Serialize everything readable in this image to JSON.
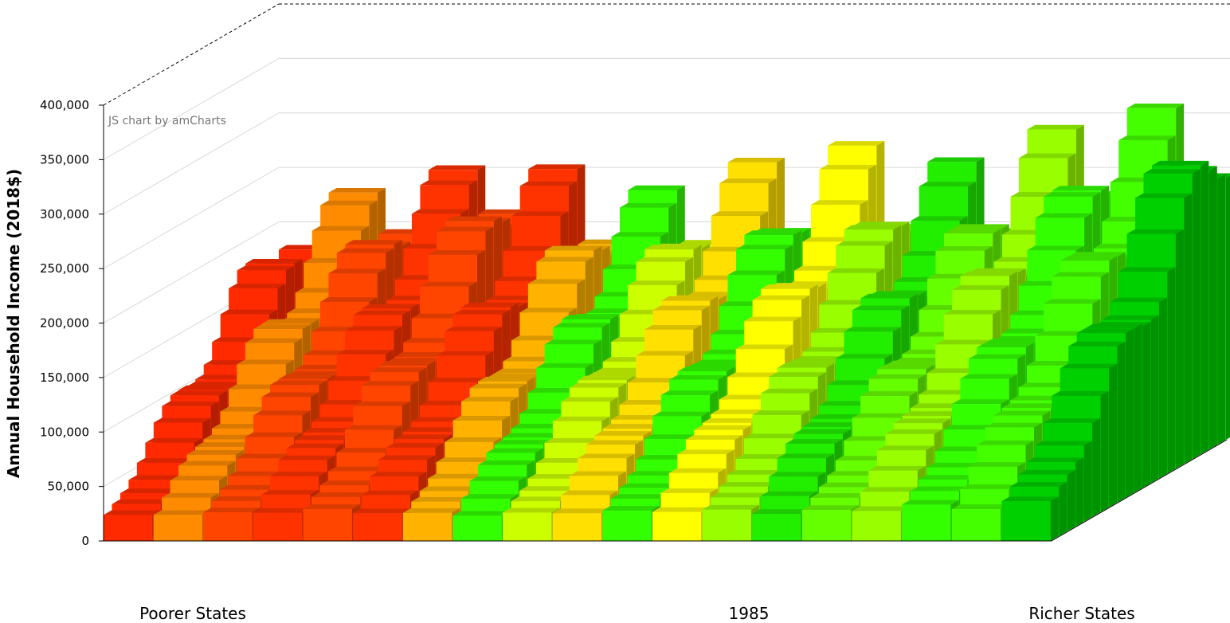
{
  "chart_data": {
    "type": "bar",
    "subtype": "3d-stacked-bar",
    "credit": "JS chart by amCharts",
    "ylabel": "Annual Household Income (2018$)",
    "ylim": [
      0,
      400000
    ],
    "yticks": [
      {
        "value": 0,
        "label": "0"
      },
      {
        "value": 50000,
        "label": "50,000"
      },
      {
        "value": 100000,
        "label": "100,000"
      },
      {
        "value": 150000,
        "label": "150,000"
      },
      {
        "value": 200000,
        "label": "200,000"
      },
      {
        "value": 250000,
        "label": "250,000"
      },
      {
        "value": 300000,
        "label": "300,000"
      },
      {
        "value": 350000,
        "label": "350,000"
      },
      {
        "value": 400000,
        "label": "400,000"
      }
    ],
    "bottom_labels": {
      "left": "Poorer States",
      "center": "1985",
      "right": "Richer States"
    },
    "grid": true,
    "color_scale": [
      "#ff2a00",
      "#ff4500",
      "#ff8c00",
      "#ffb300",
      "#ffe000",
      "#ffff00",
      "#ccff00",
      "#99ff00",
      "#33ff00",
      "#00e000"
    ],
    "bands": [
      {
        "name": "Poorer States",
        "top": 225000,
        "color": "#ff2a00"
      },
      {
        "name": "",
        "top": 230000,
        "color": "#ff8c00"
      },
      {
        "name": "",
        "top": 245000,
        "color": "#ff4500"
      },
      {
        "name": "",
        "top": 250000,
        "color": "#ff3300"
      },
      {
        "name": "",
        "top": 270000,
        "color": "#ff4500"
      },
      {
        "name": "",
        "top": 250000,
        "color": "#ff3300"
      },
      {
        "name": "",
        "top": 235000,
        "color": "#ffb300"
      },
      {
        "name": "",
        "top": 230000,
        "color": "#33ff00"
      },
      {
        "name": "",
        "top": 235000,
        "color": "#ccff00"
      },
      {
        "name": "",
        "top": 255000,
        "color": "#ffe000"
      },
      {
        "name": "",
        "top": 250000,
        "color": "#33ff00"
      },
      {
        "name": "",
        "top": 270000,
        "color": "#ffff00"
      },
      {
        "name": "",
        "top": 255000,
        "color": "#99ff00"
      },
      {
        "name": "",
        "top": 255000,
        "color": "#22ee00"
      },
      {
        "name": "",
        "top": 250000,
        "color": "#66ff00"
      },
      {
        "name": "",
        "top": 285000,
        "color": "#99ff00"
      },
      {
        "name": "",
        "top": 290000,
        "color": "#33ff00"
      },
      {
        "name": "",
        "top": 305000,
        "color": "#44ff00"
      },
      {
        "name": "Richer States",
        "top": 315000,
        "color": "#00d000"
      }
    ]
  }
}
